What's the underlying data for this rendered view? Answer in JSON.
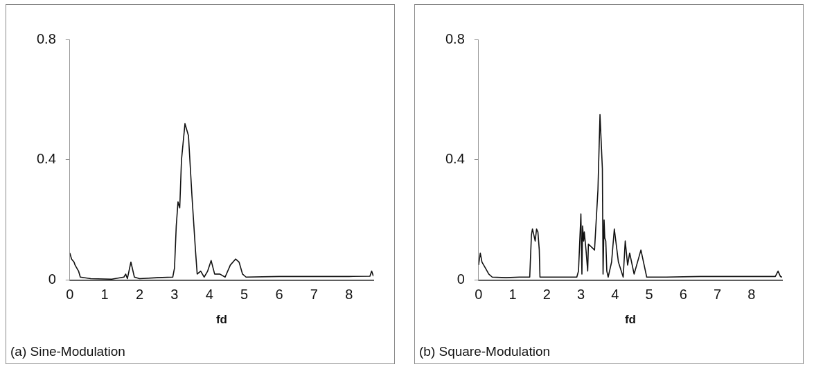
{
  "chart_data": [
    {
      "type": "line",
      "xlabel": "fd",
      "annotations": [
        "(a)  Sine-Modulation"
      ],
      "xlim": [
        0,
        8.7
      ],
      "xticks": [
        0,
        1,
        2,
        3,
        4,
        5,
        6,
        7,
        8
      ],
      "ylim": [
        0,
        0.8
      ],
      "yticks": [
        0,
        0.4,
        0.8
      ],
      "grid": false,
      "legend": false,
      "marker": "none",
      "line_style": "solid",
      "series": [
        {
          "color": "#111111",
          "x": [
            0,
            0.05,
            0.12,
            0.15,
            0.25,
            0.3,
            0.6,
            1.2,
            1.55,
            1.6,
            1.65,
            1.75,
            1.85,
            2.0,
            2.5,
            2.95,
            3.0,
            3.05,
            3.1,
            3.15,
            3.2,
            3.3,
            3.4,
            3.5,
            3.6,
            3.65,
            3.75,
            3.85,
            3.95,
            4.05,
            4.15,
            4.3,
            4.45,
            4.6,
            4.75,
            4.85,
            4.95,
            5.05,
            6,
            7,
            8,
            8.6,
            8.65,
            8.7
          ],
          "values": [
            0.09,
            0.07,
            0.06,
            0.05,
            0.03,
            0.01,
            0.005,
            0.003,
            0.01,
            0.02,
            0.005,
            0.06,
            0.01,
            0.005,
            0.008,
            0.01,
            0.04,
            0.18,
            0.26,
            0.24,
            0.4,
            0.52,
            0.48,
            0.28,
            0.1,
            0.02,
            0.03,
            0.01,
            0.03,
            0.065,
            0.02,
            0.02,
            0.01,
            0.05,
            0.07,
            0.06,
            0.02,
            0.01,
            0.012,
            0.012,
            0.012,
            0.013,
            0.03,
            0.013
          ]
        }
      ]
    },
    {
      "type": "line",
      "xlabel": "fd",
      "annotations": [
        "(b)  Square-Modulation"
      ],
      "xlim": [
        0,
        8.9
      ],
      "xticks": [
        0,
        1,
        2,
        3,
        4,
        5,
        6,
        7,
        8
      ],
      "ylim": [
        0,
        0.8
      ],
      "yticks": [
        0,
        0.4,
        0.8
      ],
      "grid": false,
      "legend": false,
      "marker": "none",
      "line_style": "solid",
      "series": [
        {
          "color": "#111111",
          "x": [
            0,
            0.05,
            0.1,
            0.2,
            0.3,
            0.4,
            0.8,
            1.2,
            1.5,
            1.55,
            1.58,
            1.62,
            1.66,
            1.7,
            1.74,
            1.78,
            1.8,
            2.2,
            2.88,
            2.93,
            3.0,
            3.03,
            3.05,
            3.08,
            3.1,
            3.15,
            3.2,
            3.22,
            3.4,
            3.5,
            3.56,
            3.63,
            3.65,
            3.68,
            3.7,
            3.73,
            3.76,
            3.8,
            3.9,
            3.98,
            4.1,
            4.24,
            4.3,
            4.37,
            4.43,
            4.56,
            4.76,
            4.93,
            5.5,
            6.5,
            7.5,
            8.7,
            8.78,
            8.85,
            8.9
          ],
          "values": [
            0.05,
            0.09,
            0.06,
            0.04,
            0.02,
            0.01,
            0.008,
            0.01,
            0.01,
            0.15,
            0.17,
            0.15,
            0.13,
            0.17,
            0.16,
            0.1,
            0.01,
            0.01,
            0.01,
            0.03,
            0.22,
            0.02,
            0.18,
            0.13,
            0.16,
            0.1,
            0.03,
            0.12,
            0.1,
            0.3,
            0.55,
            0.37,
            0.02,
            0.2,
            0.14,
            0.13,
            0.03,
            0.01,
            0.06,
            0.17,
            0.06,
            0.01,
            0.13,
            0.05,
            0.09,
            0.02,
            0.1,
            0.01,
            0.01,
            0.012,
            0.012,
            0.012,
            0.03,
            0.012,
            0.01
          ]
        }
      ]
    }
  ]
}
